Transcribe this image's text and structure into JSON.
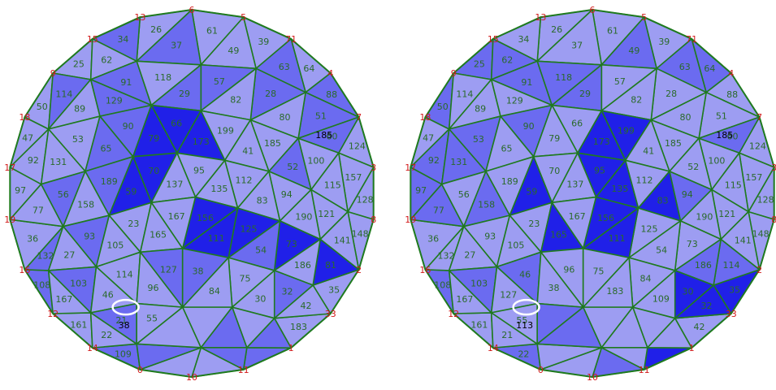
{
  "colors": {
    "light": "#9d9df2",
    "medium": "#6b6bf0",
    "dark": "#2020e8",
    "edge": "#1f7a1f",
    "vertex": "#d11a1a",
    "tri_label": "#2a6a2a",
    "highlight": "#ffffff"
  },
  "panels": [
    {
      "name": "left-mesh",
      "vertex_labels": [
        "6",
        "5",
        "71",
        "4",
        "7",
        "3",
        "8",
        "2",
        "33",
        "1",
        "11",
        "10",
        "0",
        "14",
        "12",
        "16",
        "19",
        "17",
        "18",
        "9",
        "15",
        "13"
      ],
      "triangle_labels": [
        "25",
        "26",
        "34",
        "62",
        "61",
        "37",
        "39",
        "49",
        "64",
        "63",
        "88",
        "47",
        "50",
        "114",
        "89",
        "91",
        "129",
        "118",
        "57",
        "29",
        "28",
        "82",
        "51",
        "80",
        "124",
        "60",
        "97",
        "92",
        "53",
        "131",
        "90",
        "65",
        "66",
        "79",
        "199",
        "173",
        "185",
        "41",
        "100",
        "52",
        "128",
        "157",
        "115",
        "148",
        "36",
        "77",
        "56",
        "189",
        "158",
        "70",
        "59",
        "95",
        "137",
        "112",
        "135",
        "94",
        "83",
        "121",
        "190",
        "141",
        "108",
        "132",
        "93",
        "27",
        "23",
        "105",
        "156",
        "167",
        "165",
        "125",
        "111",
        "73",
        "54",
        "35",
        "81",
        "186",
        "161",
        "167",
        "103",
        "114",
        "46",
        "127",
        "96",
        "38",
        "75",
        "84",
        "183",
        "42",
        "32",
        "30",
        "109",
        "22",
        "21",
        "55"
      ],
      "highlight_label": "38",
      "extra_label": "185"
    },
    {
      "name": "right-mesh",
      "vertex_labels": [
        "6",
        "5",
        "71",
        "4",
        "7",
        "3",
        "8",
        "2",
        "33",
        "1",
        "11",
        "10",
        "0",
        "14",
        "12",
        "16",
        "19",
        "17",
        "18",
        "9",
        "15",
        "13"
      ],
      "triangle_labels": [
        "25",
        "26",
        "34",
        "62",
        "61",
        "37",
        "39",
        "49",
        "64",
        "63",
        "88",
        "47",
        "50",
        "114",
        "89",
        "91",
        "129",
        "118",
        "57",
        "29",
        "28",
        "82",
        "51",
        "80",
        "124",
        "60",
        "97",
        "92",
        "53",
        "131",
        "90",
        "65",
        "66",
        "79",
        "199",
        "173",
        "185",
        "41",
        "100",
        "52",
        "128",
        "157",
        "115",
        "148",
        "36",
        "77",
        "56",
        "189",
        "158",
        "70",
        "59",
        "95",
        "137",
        "112",
        "135",
        "94",
        "83",
        "121",
        "190",
        "141",
        "108",
        "132",
        "93",
        "27",
        "23",
        "105",
        "156",
        "167",
        "165",
        "125",
        "111",
        "73",
        "54",
        "35",
        "114",
        "186",
        "161",
        "167",
        "103",
        "46",
        "127",
        "96",
        "38",
        "75",
        "84",
        "183",
        "42",
        "32",
        "30",
        "109",
        "22",
        "21",
        "55"
      ],
      "highlight_label": "113",
      "extra_label": "185"
    }
  ]
}
